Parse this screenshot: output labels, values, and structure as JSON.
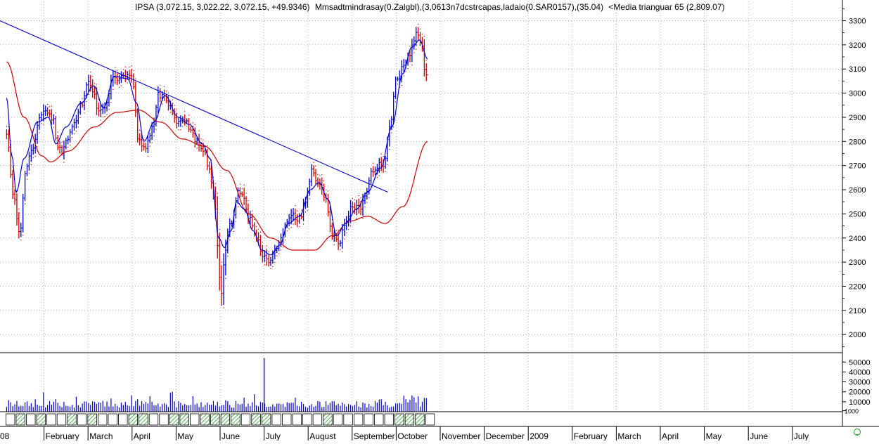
{
  "header": {
    "title": "IPSA (3,072.15, 3,022.22, 3,072.15, +49.9346)",
    "indicators": [
      "Mmsadtmindrasay(0.Zalgbl),(3,0613n7dcstrcapas,ladaio(0.SAR0157),(35.04)",
      "<Media trianguar 65 (2,809.07)"
    ]
  },
  "colors": {
    "up_bar": "#0000cc",
    "down_bar": "#cc0000",
    "trendline": "#0000cc",
    "ma_fast": "#0000cc",
    "ma_slow": "#cc0000",
    "sar_dots": "#cc0000",
    "grid": "#9a9a9a",
    "volume": "#0000cc",
    "band_hatch": "#1a9e1a"
  },
  "chart_data": {
    "type": "bar",
    "price_axis": {
      "ticks": [
        2000,
        2100,
        2200,
        2300,
        2400,
        2500,
        2600,
        2700,
        2800,
        2900,
        3000,
        3100,
        3200,
        3300
      ],
      "range": [
        1925,
        3380
      ],
      "tick_labels": [
        "2000",
        "2100",
        "2200",
        "2300",
        "2400",
        "2500",
        "2600",
        "2700",
        "2800",
        "2900",
        "3000",
        "3100",
        "3200",
        "3300"
      ]
    },
    "volume_axis": {
      "ticks": [
        1000,
        10000,
        20000,
        30000,
        40000,
        50000
      ],
      "tick_labels": [
        "1000",
        "10000",
        "20000",
        "30000",
        "40000",
        "50000"
      ],
      "range": [
        0,
        58000
      ]
    },
    "time_axis": {
      "start_fraction_label": "08",
      "months": [
        "February",
        "March",
        "April",
        "May",
        "June",
        "July",
        "August",
        "September",
        "October",
        "November",
        "December",
        "2009",
        "February",
        "March",
        "April",
        "May",
        "June",
        "July"
      ],
      "month_index": [
        1,
        2,
        3,
        4,
        5,
        6,
        7,
        8,
        9,
        10,
        11,
        12,
        13,
        14,
        15,
        16,
        17,
        18
      ],
      "first_label": "08",
      "total_months": 18.4
    },
    "price_anchors": [
      [
        0.0,
        2830
      ],
      [
        0.15,
        2590
      ],
      [
        0.3,
        2420
      ],
      [
        0.45,
        2700
      ],
      [
        0.6,
        2780
      ],
      [
        0.75,
        2900
      ],
      [
        0.9,
        2925
      ],
      [
        1.05,
        2890
      ],
      [
        1.15,
        2790
      ],
      [
        1.25,
        2760
      ],
      [
        1.4,
        2820
      ],
      [
        1.55,
        2880
      ],
      [
        1.7,
        2950
      ],
      [
        1.85,
        3050
      ],
      [
        1.95,
        3000
      ],
      [
        2.1,
        2930
      ],
      [
        2.25,
        2950
      ],
      [
        2.4,
        3070
      ],
      [
        2.55,
        3060
      ],
      [
        2.7,
        3080
      ],
      [
        2.85,
        3060
      ],
      [
        3.0,
        2800
      ],
      [
        3.15,
        2780
      ],
      [
        3.3,
        2850
      ],
      [
        3.45,
        2990
      ],
      [
        3.55,
        3000
      ],
      [
        3.7,
        2960
      ],
      [
        3.85,
        2880
      ],
      [
        4.0,
        2900
      ],
      [
        4.15,
        2860
      ],
      [
        4.3,
        2800
      ],
      [
        4.45,
        2770
      ],
      [
        4.6,
        2700
      ],
      [
        4.72,
        2550
      ],
      [
        4.8,
        2350
      ],
      [
        4.87,
        2150
      ],
      [
        4.93,
        2300
      ],
      [
        5.05,
        2450
      ],
      [
        5.15,
        2480
      ],
      [
        5.25,
        2610
      ],
      [
        5.35,
        2580
      ],
      [
        5.5,
        2480
      ],
      [
        5.65,
        2420
      ],
      [
        5.8,
        2330
      ],
      [
        5.95,
        2300
      ],
      [
        6.1,
        2360
      ],
      [
        6.2,
        2380
      ],
      [
        6.35,
        2460
      ],
      [
        6.5,
        2490
      ],
      [
        6.65,
        2480
      ],
      [
        6.8,
        2560
      ],
      [
        6.95,
        2680
      ],
      [
        7.05,
        2640
      ],
      [
        7.15,
        2620
      ],
      [
        7.25,
        2560
      ],
      [
        7.4,
        2400
      ],
      [
        7.55,
        2380
      ],
      [
        7.7,
        2470
      ],
      [
        7.85,
        2530
      ],
      [
        8.0,
        2520
      ],
      [
        8.15,
        2580
      ],
      [
        8.3,
        2680
      ],
      [
        8.45,
        2700
      ],
      [
        8.55,
        2690
      ],
      [
        8.7,
        2850
      ],
      [
        8.85,
        3050
      ],
      [
        9.0,
        3100
      ],
      [
        9.15,
        3160
      ],
      [
        9.3,
        3240
      ],
      [
        9.42,
        3220
      ],
      [
        9.5,
        3100
      ],
      [
        9.57,
        3050
      ]
    ],
    "trendline": {
      "from": [
        0.0,
        3300
      ],
      "to": [
        8.66,
        2590
      ]
    },
    "ma_fast_anchors": [
      [
        0.0,
        2980
      ],
      [
        0.12,
        2740
      ],
      [
        0.22,
        2590
      ],
      [
        0.4,
        2730
      ],
      [
        0.7,
        2880
      ],
      [
        0.95,
        2900
      ],
      [
        1.12,
        2790
      ],
      [
        1.35,
        2860
      ],
      [
        1.7,
        2960
      ],
      [
        1.98,
        3030
      ],
      [
        2.2,
        2940
      ],
      [
        2.45,
        3070
      ],
      [
        2.75,
        3060
      ],
      [
        2.95,
        2960
      ],
      [
        3.12,
        2800
      ],
      [
        3.35,
        2880
      ],
      [
        3.6,
        2990
      ],
      [
        3.9,
        2900
      ],
      [
        4.15,
        2870
      ],
      [
        4.45,
        2790
      ],
      [
        4.62,
        2730
      ],
      [
        4.82,
        2400
      ],
      [
        4.95,
        2360
      ],
      [
        5.1,
        2430
      ],
      [
        5.22,
        2550
      ],
      [
        5.4,
        2520
      ],
      [
        5.6,
        2430
      ],
      [
        5.8,
        2350
      ],
      [
        6.0,
        2330
      ],
      [
        6.2,
        2370
      ],
      [
        6.4,
        2460
      ],
      [
        6.65,
        2490
      ],
      [
        6.9,
        2600
      ],
      [
        7.1,
        2630
      ],
      [
        7.3,
        2560
      ],
      [
        7.5,
        2410
      ],
      [
        7.7,
        2460
      ],
      [
        7.95,
        2520
      ],
      [
        8.2,
        2590
      ],
      [
        8.5,
        2690
      ],
      [
        8.75,
        2860
      ],
      [
        9.0,
        3080
      ],
      [
        9.2,
        3190
      ],
      [
        9.38,
        3220
      ],
      [
        9.57,
        3140
      ]
    ],
    "ma_slow_anchors": [
      [
        0.0,
        3130
      ],
      [
        0.4,
        2900
      ],
      [
        0.8,
        2740
      ],
      [
        1.0,
        2715
      ],
      [
        1.4,
        2760
      ],
      [
        2.0,
        2860
      ],
      [
        2.5,
        2920
      ],
      [
        3.0,
        2930
      ],
      [
        3.5,
        2880
      ],
      [
        4.0,
        2810
      ],
      [
        4.5,
        2780
      ],
      [
        5.0,
        2680
      ],
      [
        5.5,
        2500
      ],
      [
        6.0,
        2400
      ],
      [
        6.5,
        2350
      ],
      [
        7.0,
        2350
      ],
      [
        7.4,
        2410
      ],
      [
        7.8,
        2470
      ],
      [
        8.2,
        2490
      ],
      [
        8.6,
        2460
      ],
      [
        9.0,
        2530
      ],
      [
        9.57,
        2800
      ]
    ],
    "volume_spike": {
      "month": 5.85,
      "value": 54000
    }
  }
}
